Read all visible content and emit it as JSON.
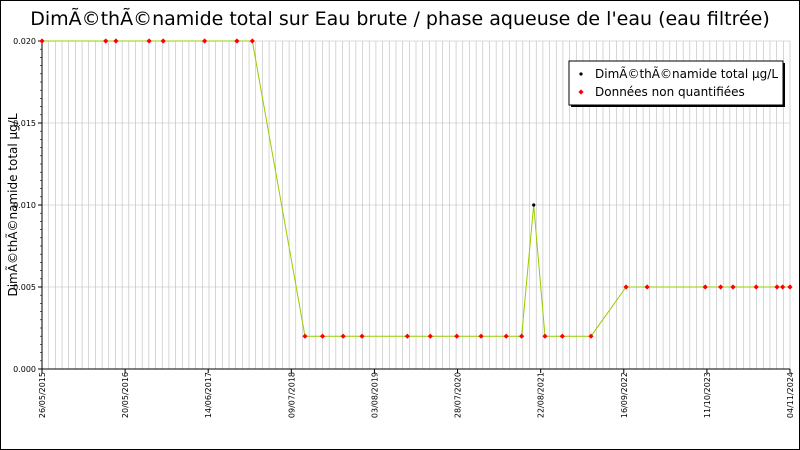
{
  "chart_data": {
    "type": "line",
    "title": "DimÃ©thÃ©namide total sur Eau brute / phase aqueuse de l'eau (eau filtrée)",
    "ylabel": "DimÃ©thÃ©namide total µg/L",
    "xlabel": "",
    "ylim": [
      0,
      0.02
    ],
    "yticks": [
      0.0,
      0.005,
      0.01,
      0.015,
      0.02
    ],
    "ytick_labels": [
      "0.000",
      "0.005",
      "0.010",
      "0.015",
      "0.020"
    ],
    "xlim": [
      "2015-05-26",
      "2024-11-04"
    ],
    "xtick_labels": [
      "26/05/2015",
      "20/05/2016",
      "14/06/2017",
      "09/07/2018",
      "03/08/2019",
      "28/07/2020",
      "22/08/2021",
      "16/09/2022",
      "11/10/2023",
      "04/11/2024"
    ],
    "grid": true,
    "legend_position": "top-right",
    "series": [
      {
        "name": "DimÃ©thÃ©namide total µg/L",
        "color": "#99cc00",
        "marker_color": "#000000",
        "points": [
          {
            "x": "2015-05-26",
            "y": 0.02,
            "quantified": false
          },
          {
            "x": "2016-03-15",
            "y": 0.02,
            "quantified": false
          },
          {
            "x": "2016-05-01",
            "y": 0.02,
            "quantified": false
          },
          {
            "x": "2016-10-01",
            "y": 0.02,
            "quantified": false
          },
          {
            "x": "2016-12-05",
            "y": 0.02,
            "quantified": false
          },
          {
            "x": "2017-06-14",
            "y": 0.02,
            "quantified": false
          },
          {
            "x": "2017-11-10",
            "y": 0.02,
            "quantified": false
          },
          {
            "x": "2018-01-20",
            "y": 0.02,
            "quantified": false
          },
          {
            "x": "2018-09-20",
            "y": 0.002,
            "quantified": false
          },
          {
            "x": "2018-12-10",
            "y": 0.002,
            "quantified": false
          },
          {
            "x": "2019-03-15",
            "y": 0.002,
            "quantified": false
          },
          {
            "x": "2019-06-10",
            "y": 0.002,
            "quantified": false
          },
          {
            "x": "2020-01-05",
            "y": 0.002,
            "quantified": false
          },
          {
            "x": "2020-04-20",
            "y": 0.002,
            "quantified": false
          },
          {
            "x": "2020-08-20",
            "y": 0.002,
            "quantified": false
          },
          {
            "x": "2020-12-10",
            "y": 0.002,
            "quantified": false
          },
          {
            "x": "2021-04-05",
            "y": 0.002,
            "quantified": false
          },
          {
            "x": "2021-06-15",
            "y": 0.002,
            "quantified": false
          },
          {
            "x": "2021-08-10",
            "y": 0.01,
            "quantified": true
          },
          {
            "x": "2021-10-01",
            "y": 0.002,
            "quantified": false
          },
          {
            "x": "2021-12-20",
            "y": 0.002,
            "quantified": false
          },
          {
            "x": "2022-05-01",
            "y": 0.002,
            "quantified": false
          },
          {
            "x": "2022-10-10",
            "y": 0.005,
            "quantified": false
          },
          {
            "x": "2023-01-15",
            "y": 0.005,
            "quantified": false
          },
          {
            "x": "2023-10-10",
            "y": 0.005,
            "quantified": false
          },
          {
            "x": "2023-12-20",
            "y": 0.005,
            "quantified": false
          },
          {
            "x": "2024-02-15",
            "y": 0.005,
            "quantified": false
          },
          {
            "x": "2024-06-01",
            "y": 0.005,
            "quantified": false
          },
          {
            "x": "2024-09-05",
            "y": 0.005,
            "quantified": false
          },
          {
            "x": "2024-10-01",
            "y": 0.005,
            "quantified": false
          },
          {
            "x": "2024-11-04",
            "y": 0.005,
            "quantified": false
          }
        ]
      }
    ],
    "legend": [
      {
        "label": "DimÃ©thÃ©namide total µg/L",
        "marker": "black-dot"
      },
      {
        "label": "Données non quantifiées",
        "marker": "red-diamond"
      }
    ],
    "colors": {
      "line": "#99cc00",
      "quantified_marker": "#000000",
      "non_quantified_marker": "#ff0000",
      "grid": "#bbbbbb"
    }
  }
}
